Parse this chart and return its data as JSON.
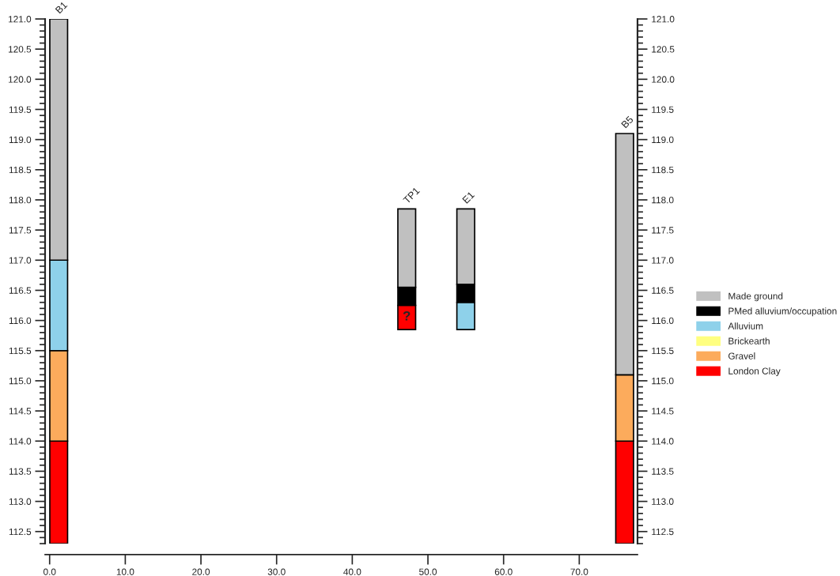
{
  "chart_data": {
    "type": "bar",
    "x": [
      1.2,
      47.2,
      55.0,
      76.0
    ],
    "series": [
      {
        "name": "London Clay",
        "color": "#ff0000",
        "base": [
          112.3,
          115.85,
          null,
          112.3
        ],
        "values": [
          1.7,
          0.4,
          null,
          1.7
        ]
      },
      {
        "name": "Gravel",
        "color": "#fcab5c",
        "base": [
          114.0,
          null,
          null,
          114.0
        ],
        "values": [
          1.5,
          null,
          null,
          1.1
        ]
      },
      {
        "name": "Brickearth",
        "color": "#ffff80",
        "values": [
          null,
          null,
          null,
          null
        ]
      },
      {
        "name": "Alluvium",
        "color": "#8ed1ea",
        "base": [
          115.5,
          null,
          115.85,
          null
        ],
        "values": [
          1.5,
          null,
          0.45,
          null
        ]
      },
      {
        "name": "PMed alluvium/occupation",
        "color": "#000000",
        "base": [
          null,
          116.25,
          116.3,
          null
        ],
        "values": [
          null,
          0.3,
          0.3,
          null
        ]
      },
      {
        "name": "Made ground",
        "color": "#c0c0c0",
        "base": [
          117.0,
          116.55,
          116.6,
          115.1
        ],
        "values": [
          4.0,
          1.3,
          1.25,
          4.0
        ]
      }
    ],
    "annotations": [
      {
        "text": "B1",
        "x": 1.2,
        "y": 121.0
      },
      {
        "text": "TP1",
        "x": 47.2,
        "y": 117.85
      },
      {
        "text": "E1",
        "x": 55.0,
        "y": 117.85
      },
      {
        "text": "B5",
        "x": 76.0,
        "y": 119.1
      },
      {
        "text": "?",
        "x": 47.2,
        "y": 116.25
      }
    ],
    "xlim": [
      -0.6,
      77.7
    ],
    "xticks": [
      {
        "value": 0,
        "label": "0.0"
      },
      {
        "value": 10,
        "label": "10.0"
      },
      {
        "value": 20,
        "label": "20.0"
      },
      {
        "value": 30,
        "label": "30.0"
      },
      {
        "value": 40,
        "label": "40.0"
      },
      {
        "value": 50,
        "label": "50.0"
      },
      {
        "value": 60,
        "label": "60.0"
      },
      {
        "value": 70,
        "label": "70.0"
      }
    ],
    "ylim": [
      112.3,
      121.0
    ],
    "yticks": [
      112.5,
      {
        "value": 113,
        "label": "113.0"
      },
      113.5,
      {
        "value": 114,
        "label": "114.0"
      },
      114.5,
      {
        "value": 115,
        "label": "115.0"
      },
      115.5,
      {
        "value": 116,
        "label": "116.0"
      },
      116.5,
      {
        "value": 117,
        "label": "117.0"
      },
      117.5,
      {
        "value": 118,
        "label": "118.0"
      },
      118.5,
      {
        "value": 119,
        "label": "119.0"
      },
      119.5,
      {
        "value": 120,
        "label": "120.0"
      },
      120.5,
      {
        "value": 121,
        "label": "121.0"
      }
    ],
    "y2lim": [
      112.3,
      121.0
    ],
    "y2ticks": [
      112.5,
      {
        "value": 113,
        "label": "113.0"
      },
      113.5,
      {
        "value": 114,
        "label": "114.0"
      },
      114.5,
      {
        "value": 115,
        "label": "115.0"
      },
      115.5,
      {
        "value": 116,
        "label": "116.0"
      },
      116.5,
      {
        "value": 117,
        "label": "117.0"
      },
      117.5,
      {
        "value": 118,
        "label": "118.0"
      },
      118.5,
      {
        "value": 119,
        "label": "119.0"
      },
      119.5,
      {
        "value": 120,
        "label": "120.0"
      },
      120.5,
      {
        "value": 121,
        "label": "121.0"
      }
    ],
    "legend": "right",
    "grid": false
  }
}
